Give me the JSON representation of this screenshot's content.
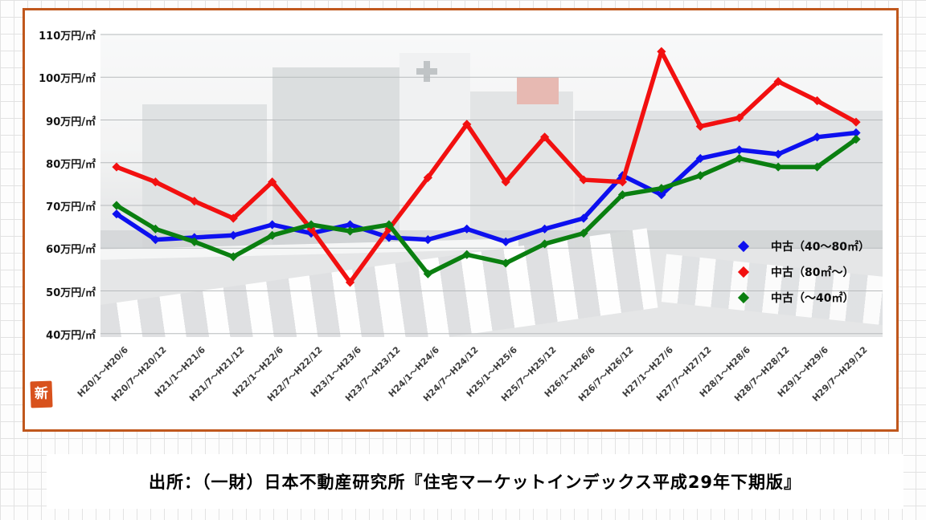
{
  "page": {
    "caption": "出所：（一財）日本不動産研究所『住宅マーケットインデックス平成29年下期版』",
    "stamp": "新",
    "frame_border_color": "#c0571c",
    "stamp_color": "#d8521d"
  },
  "chart_data": {
    "type": "line",
    "title": "",
    "xlabel": "",
    "ylabel": "万円/㎡",
    "ylim": [
      40,
      110
    ],
    "grid": "horizontal",
    "legend_position": "middle-right",
    "categories": [
      "H20/1～H20/6",
      "H20/7～H20/12",
      "H21/1～H21/6",
      "H21/7～H21/12",
      "H22/1～H22/6",
      "H22/7～H22/12",
      "H23/1～H23/6",
      "H23/7～H23/12",
      "H24/1～H24/6",
      "H24/7～H24/12",
      "H25/1～H25/6",
      "H25/7～H25/12",
      "H26/1～H26/6",
      "H26/7～H26/12",
      "H27/1～H27/6",
      "H27/7～H27/12",
      "H28/1～H28/6",
      "H28/7～H28/12",
      "H29/1～H29/6",
      "H29/7～H29/12"
    ],
    "y_ticks": [
      {
        "v": 110,
        "label": "110万円/㎡"
      },
      {
        "v": 100,
        "label": "100万円/㎡"
      },
      {
        "v": 90,
        "label": "90万円/㎡"
      },
      {
        "v": 80,
        "label": "80万円/㎡"
      },
      {
        "v": 70,
        "label": "70万円/㎡"
      },
      {
        "v": 60,
        "label": "60万円/㎡"
      },
      {
        "v": 50,
        "label": "50万円/㎡"
      },
      {
        "v": 40,
        "label": "40万円/㎡"
      }
    ],
    "series": [
      {
        "name": "中古（40～80㎡）",
        "color": "#0d10ef",
        "values": [
          68,
          62,
          62.5,
          63,
          65.5,
          63.5,
          65.5,
          62.5,
          62,
          64.5,
          61.5,
          64.5,
          67,
          77,
          72.5,
          81,
          83,
          82,
          86,
          87
        ]
      },
      {
        "name": "中古（80㎡～）",
        "color": "#f21010",
        "values": [
          79,
          75.5,
          71,
          67,
          75.5,
          64.5,
          52,
          64.5,
          76.5,
          89,
          75.5,
          86,
          76,
          75.5,
          106,
          88.5,
          90.5,
          99,
          94.5,
          89.5
        ]
      },
      {
        "name": "中古（～40㎡）",
        "color": "#0a7f10",
        "values": [
          70,
          64.5,
          61.5,
          58,
          63,
          65.5,
          64,
          65.5,
          54,
          58.5,
          56.5,
          61,
          63.5,
          72.5,
          74,
          77,
          81,
          79,
          79,
          85.5
        ]
      }
    ]
  }
}
